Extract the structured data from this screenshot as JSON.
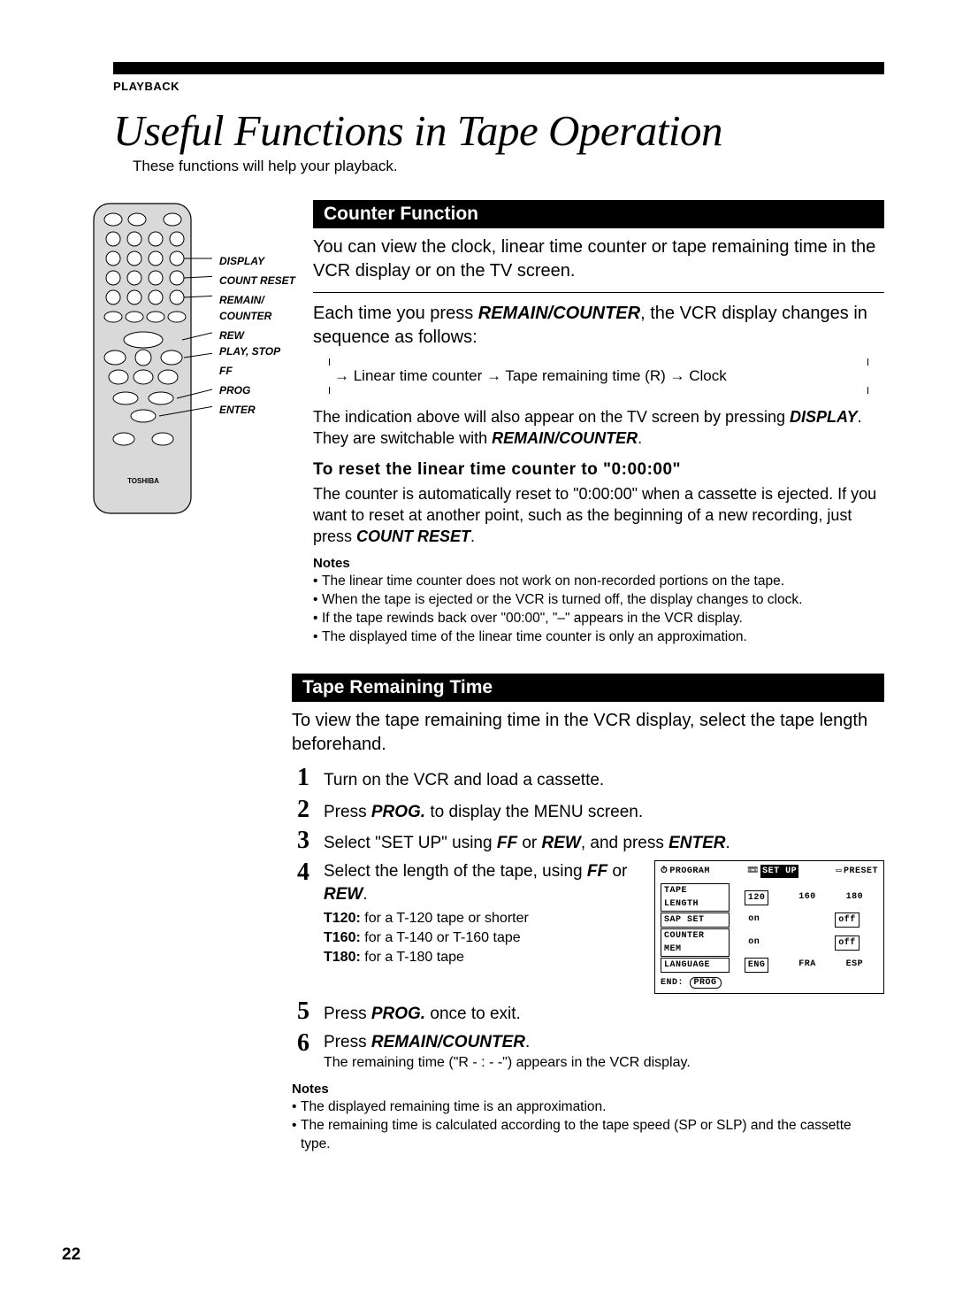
{
  "section_label": "PLAYBACK",
  "page_title": "Useful Functions in Tape Operation",
  "page_subtitle": "These functions will help your playback.",
  "remote_labels": [
    "DISPLAY",
    "COUNT RESET",
    "REMAIN/\nCOUNTER",
    "REW\nPLAY, STOP",
    "FF",
    "PROG",
    "ENTER"
  ],
  "counter": {
    "header": "Counter Function",
    "intro": "You can view the clock, linear time counter or tape remaining time in the VCR display or on the TV screen.",
    "press_text_1": "Each time you press ",
    "press_key": "REMAIN/COUNTER",
    "press_text_2": ", the VCR display changes in sequence as follows:",
    "sequence": "→ Linear time counter → Tape remaining time (R) → Clock",
    "tv_text_1": "The indication above will also appear on the TV screen by pressing ",
    "tv_key1": "DISPLAY",
    "tv_text_2": ". They are switchable with ",
    "tv_key2": "REMAIN/COUNTER",
    "tv_text_3": ".",
    "reset_heading": "To reset the linear time counter to \"0:00:00\"",
    "reset_body_1": "The counter is automatically reset to \"0:00:00\" when a cassette is ejected.  If you want to reset at another point, such as the beginning of a new recording, just press ",
    "reset_key": "COUNT RESET",
    "reset_body_2": ".",
    "notes_title": "Notes",
    "notes": [
      "The linear time counter does not work on non-recorded portions on the tape.",
      "When the tape is ejected or the VCR is turned off, the display changes to clock.",
      "If the tape rewinds back over \"00:00\", \"–\" appears in the VCR display.",
      "The displayed time of the linear time counter is only an approximation."
    ]
  },
  "tape": {
    "header": "Tape Remaining Time",
    "intro": "To view the tape remaining time in the VCR display, select the tape length beforehand.",
    "steps": {
      "s1": "Turn on the VCR and load a cassette.",
      "s2_a": "Press ",
      "s2_b": "PROG.",
      "s2_c": " to display the MENU screen.",
      "s3_a": "Select \"SET UP\" using ",
      "s3_b": "FF",
      "s3_c": " or ",
      "s3_d": "REW",
      "s3_e": ", and press ",
      "s3_f": "ENTER",
      "s3_g": ".",
      "s4_a": "Select the length of the tape, using ",
      "s4_b": "FF",
      "s4_c": " or ",
      "s4_d": "REW",
      "s4_e": ".",
      "s4_t120a": "T120:",
      "s4_t120b": " for a T-120 tape or shorter",
      "s4_t160a": "T160:",
      "s4_t160b": " for a T-140 or T-160 tape",
      "s4_t180a": "T180:",
      "s4_t180b": " for a T-180 tape",
      "s5_a": "Press ",
      "s5_b": "PROG.",
      "s5_c": " once to exit.",
      "s6_a": "Press ",
      "s6_b": "REMAIN/COUNTER",
      "s6_c": ".",
      "s6_sub": "The remaining time (\"R - : - -\") appears in the VCR display."
    },
    "menu": {
      "tabs": [
        "PROGRAM",
        "SET UP",
        "PRESET"
      ],
      "rows": [
        {
          "label": "TAPE LENGTH",
          "opts": [
            "120",
            "160",
            "180"
          ],
          "sel": 0
        },
        {
          "label": "SAP SET",
          "opts": [
            "on",
            "",
            "off"
          ],
          "sel": 2
        },
        {
          "label": "COUNTER MEM",
          "opts": [
            "on",
            "",
            "off"
          ],
          "sel": 2
        },
        {
          "label": "LANGUAGE",
          "opts": [
            "ENG",
            "FRA",
            "ESP"
          ],
          "sel": 0
        }
      ],
      "end_a": "END:",
      "end_b": "PROG"
    },
    "notes_title": "Notes",
    "notes": [
      "The displayed remaining time is an approximation.",
      "The remaining time is calculated according to the tape speed (SP or SLP) and the cassette type."
    ]
  },
  "page_number": "22"
}
